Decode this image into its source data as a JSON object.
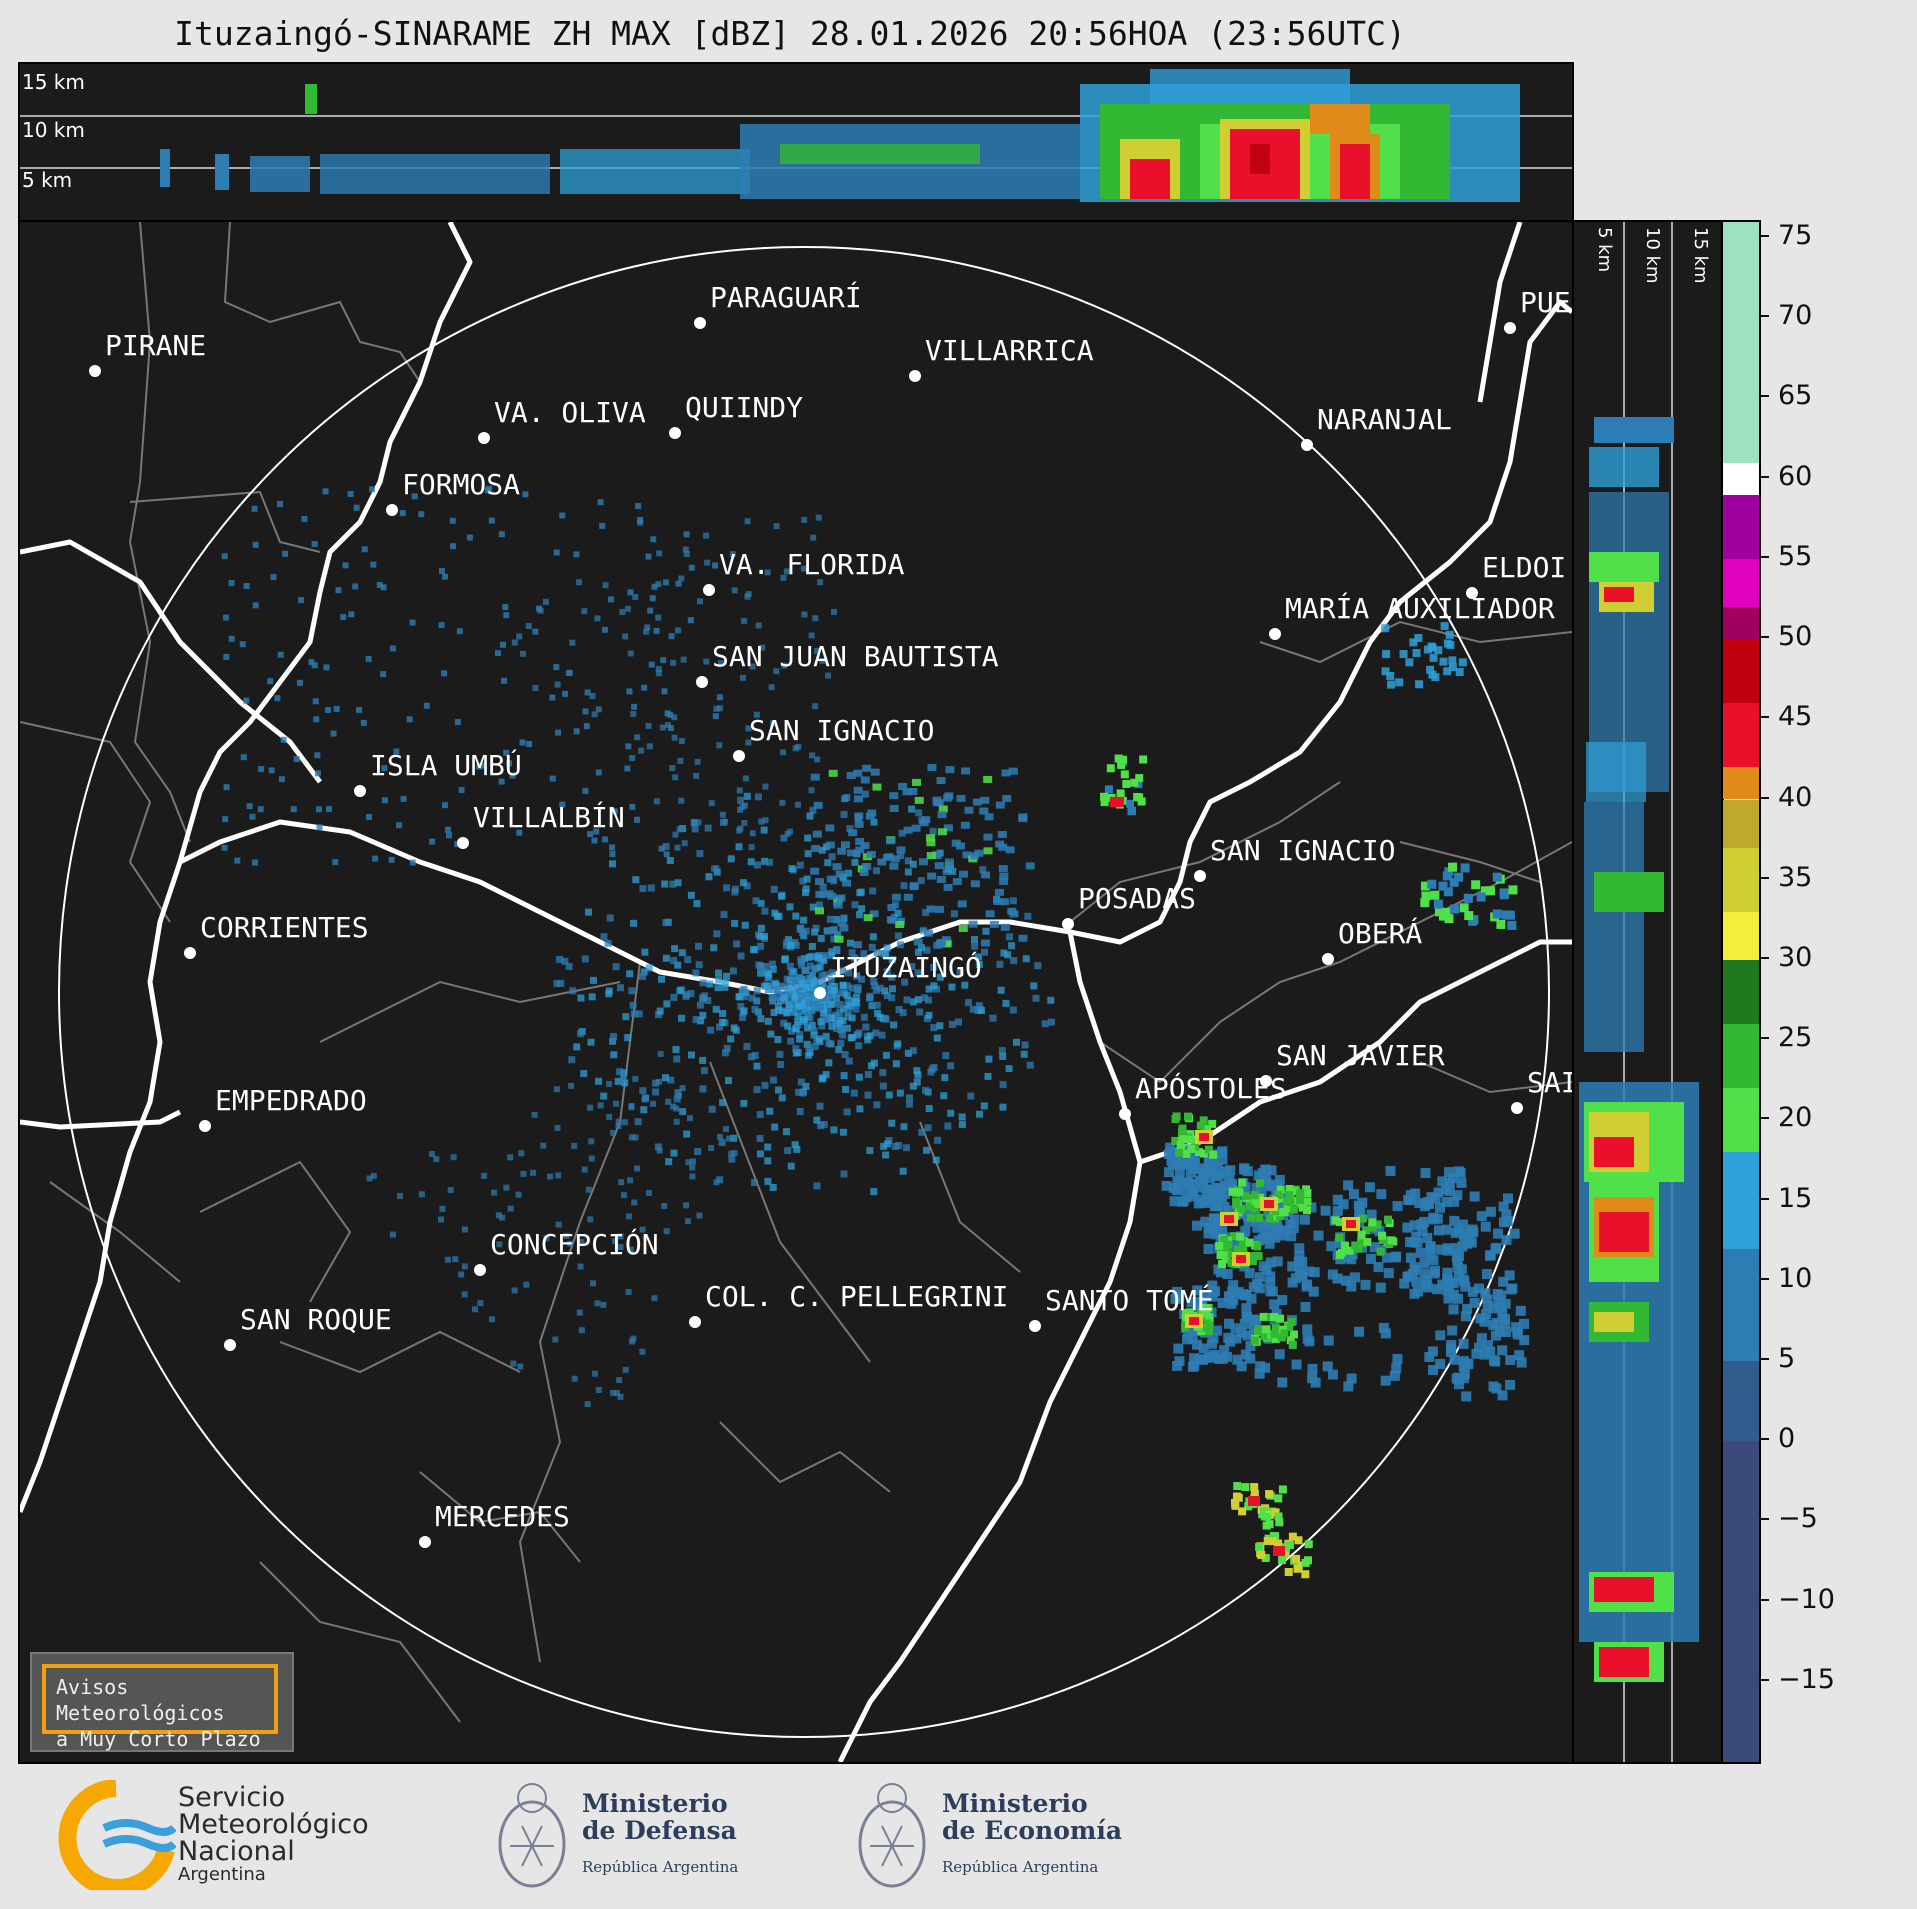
{
  "title": "Ituzaingó-SINARAME ZH MAX [dBZ] 28.01.2026 20:56HOA (23:56UTC)",
  "top_panel": {
    "height_labels": [
      "15 km",
      "10 km",
      "5 km"
    ]
  },
  "right_panel": {
    "height_labels": [
      "5 km",
      "10 km",
      "15 km"
    ]
  },
  "alert_box": {
    "line1": "Avisos Meteorológicos",
    "line2": "a Muy Corto Plazo",
    "border_color": "#f0a010"
  },
  "cities": [
    {
      "name": "PARAGUARÍ"
    },
    {
      "name": "PIRANE"
    },
    {
      "name": "VILLARRICA"
    },
    {
      "name": "QUIINDY"
    },
    {
      "name": "VA. OLIVA"
    },
    {
      "name": "NARANJAL"
    },
    {
      "name": "FORMOSA"
    },
    {
      "name": "VA. FLORIDA"
    },
    {
      "name": "ELDOI"
    },
    {
      "name": "MARÍA AUXILIADOR"
    },
    {
      "name": "SAN JUAN BAUTISTA"
    },
    {
      "name": "SAN IGNACIO"
    },
    {
      "name": "ISLA UMBÚ"
    },
    {
      "name": "VILLALBÍN"
    },
    {
      "name": "SAN IGNACIO"
    },
    {
      "name": "POSADAS"
    },
    {
      "name": "CORRIENTES"
    },
    {
      "name": "ITUZAINGÓ"
    },
    {
      "name": "OBERÁ"
    },
    {
      "name": "EMPEDRADO"
    },
    {
      "name": "APÓSTOLES"
    },
    {
      "name": "SAN JAVIER"
    },
    {
      "name": "SAI"
    },
    {
      "name": "CONCEPCIÓN"
    },
    {
      "name": "COL. C. PELLEGRINI"
    },
    {
      "name": "SANTO TOMÉ"
    },
    {
      "name": "SAN ROQUE"
    },
    {
      "name": "MERCEDES"
    },
    {
      "name": "PUE"
    }
  ],
  "colorbar": {
    "unit": "dBZ",
    "ticks": [
      "75",
      "70",
      "65",
      "60",
      "55",
      "50",
      "45",
      "40",
      "35",
      "30",
      "25",
      "20",
      "15",
      "10",
      "5",
      "0",
      "−5",
      "−10",
      "−15"
    ],
    "tick_values": [
      75,
      70,
      65,
      60,
      55,
      50,
      45,
      40,
      35,
      30,
      25,
      20,
      15,
      10,
      5,
      0,
      -5,
      -10,
      -15
    ],
    "range": [
      -20,
      76
    ],
    "segments": [
      {
        "from": -20,
        "to": 0,
        "color": "#3b4a78"
      },
      {
        "from": 0,
        "to": 5,
        "color": "#2f5e8e"
      },
      {
        "from": 5,
        "to": 12,
        "color": "#2d7db4"
      },
      {
        "from": 12,
        "to": 18,
        "color": "#2fa0d8"
      },
      {
        "from": 18,
        "to": 22,
        "color": "#4fe04a"
      },
      {
        "from": 22,
        "to": 26,
        "color": "#33b833"
      },
      {
        "from": 26,
        "to": 30,
        "color": "#1f7a1f"
      },
      {
        "from": 30,
        "to": 33,
        "color": "#f2ee3a"
      },
      {
        "from": 33,
        "to": 37,
        "color": "#cfcf33"
      },
      {
        "from": 37,
        "to": 40,
        "color": "#c0a82a"
      },
      {
        "from": 40,
        "to": 42,
        "color": "#e08a1a"
      },
      {
        "from": 42,
        "to": 46,
        "color": "#e8102a"
      },
      {
        "from": 46,
        "to": 50,
        "color": "#c00010"
      },
      {
        "from": 50,
        "to": 52,
        "color": "#a00060"
      },
      {
        "from": 52,
        "to": 55,
        "color": "#e000c0"
      },
      {
        "from": 55,
        "to": 59,
        "color": "#a000a0"
      },
      {
        "from": 59,
        "to": 61,
        "color": "#ffffff"
      },
      {
        "from": 61,
        "to": 76,
        "color": "#9fe0c0"
      }
    ]
  },
  "logos": {
    "smn": {
      "line1": "Servicio",
      "line2": "Meteorológico",
      "line3": "Nacional",
      "sub": "Argentina"
    },
    "defensa": {
      "line1": "Ministerio",
      "line2": "de Defensa",
      "sub": "República Argentina"
    },
    "economia": {
      "line1": "Ministerio",
      "line2": "de Economía",
      "sub": "República Argentina"
    }
  }
}
